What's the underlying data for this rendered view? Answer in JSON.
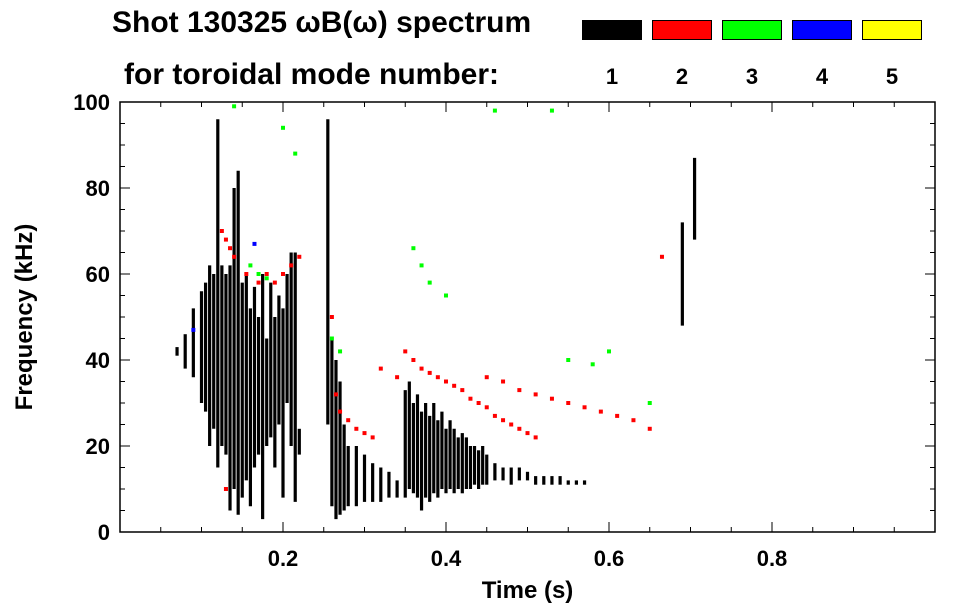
{
  "title_line1": "Shot 130325 ωB(ω) spectrum",
  "title_line2": "for toroidal mode number:",
  "legend": [
    {
      "label": "1",
      "color": "#000000"
    },
    {
      "label": "2",
      "color": "#ff0000"
    },
    {
      "label": "3",
      "color": "#00ff00"
    },
    {
      "label": "4",
      "color": "#0000ff"
    },
    {
      "label": "5",
      "color": "#ffff00"
    }
  ],
  "chart_data": {
    "type": "scatter",
    "title": "Shot 130325 ωB(ω) spectrum",
    "xlabel": "Time (s)",
    "ylabel": "Frequency (kHz)",
    "xlim": [
      0.0,
      1.0
    ],
    "ylim": [
      0,
      100
    ],
    "xticks": [
      0.2,
      0.4,
      0.6,
      0.8
    ],
    "xtick_labels": [
      "0.2",
      "0.4",
      "0.6",
      "0.8"
    ],
    "yticks": [
      0,
      20,
      40,
      60,
      80,
      100
    ],
    "ytick_labels": [
      "0",
      "20",
      "40",
      "60",
      "80",
      "100"
    ],
    "grid": false,
    "series": [
      {
        "name": "1",
        "color": "#000000",
        "segments": [
          {
            "x": 0.07,
            "y0": 41,
            "y1": 43
          },
          {
            "x": 0.08,
            "y0": 38,
            "y1": 46
          },
          {
            "x": 0.09,
            "y0": 36,
            "y1": 52
          },
          {
            "x": 0.1,
            "y0": 30,
            "y1": 56
          },
          {
            "x": 0.105,
            "y0": 28,
            "y1": 58
          },
          {
            "x": 0.11,
            "y0": 20,
            "y1": 62
          },
          {
            "x": 0.115,
            "y0": 24,
            "y1": 60
          },
          {
            "x": 0.12,
            "y0": 15,
            "y1": 96
          },
          {
            "x": 0.125,
            "y0": 20,
            "y1": 62
          },
          {
            "x": 0.13,
            "y0": 18,
            "y1": 60
          },
          {
            "x": 0.135,
            "y0": 5,
            "y1": 62
          },
          {
            "x": 0.14,
            "y0": 10,
            "y1": 80
          },
          {
            "x": 0.145,
            "y0": 4,
            "y1": 84
          },
          {
            "x": 0.15,
            "y0": 8,
            "y1": 58
          },
          {
            "x": 0.155,
            "y0": 12,
            "y1": 60
          },
          {
            "x": 0.16,
            "y0": 6,
            "y1": 52
          },
          {
            "x": 0.165,
            "y0": 15,
            "y1": 57
          },
          {
            "x": 0.17,
            "y0": 18,
            "y1": 50
          },
          {
            "x": 0.175,
            "y0": 3,
            "y1": 60
          },
          {
            "x": 0.18,
            "y0": 20,
            "y1": 45
          },
          {
            "x": 0.185,
            "y0": 22,
            "y1": 58
          },
          {
            "x": 0.19,
            "y0": 15,
            "y1": 50
          },
          {
            "x": 0.195,
            "y0": 25,
            "y1": 55
          },
          {
            "x": 0.2,
            "y0": 8,
            "y1": 52
          },
          {
            "x": 0.205,
            "y0": 30,
            "y1": 60
          },
          {
            "x": 0.21,
            "y0": 20,
            "y1": 65
          },
          {
            "x": 0.215,
            "y0": 7,
            "y1": 65
          },
          {
            "x": 0.22,
            "y0": 18,
            "y1": 24
          },
          {
            "x": 0.255,
            "y0": 25,
            "y1": 96
          },
          {
            "x": 0.26,
            "y0": 6,
            "y1": 45
          },
          {
            "x": 0.265,
            "y0": 3,
            "y1": 40
          },
          {
            "x": 0.27,
            "y0": 4,
            "y1": 35
          },
          {
            "x": 0.275,
            "y0": 5,
            "y1": 25
          },
          {
            "x": 0.28,
            "y0": 6,
            "y1": 20
          },
          {
            "x": 0.29,
            "y0": 6,
            "y1": 20
          },
          {
            "x": 0.3,
            "y0": 7,
            "y1": 18
          },
          {
            "x": 0.31,
            "y0": 7,
            "y1": 16
          },
          {
            "x": 0.32,
            "y0": 7,
            "y1": 15
          },
          {
            "x": 0.33,
            "y0": 8,
            "y1": 14
          },
          {
            "x": 0.34,
            "y0": 8,
            "y1": 12
          },
          {
            "x": 0.35,
            "y0": 8,
            "y1": 33
          },
          {
            "x": 0.355,
            "y0": 10,
            "y1": 35
          },
          {
            "x": 0.36,
            "y0": 9,
            "y1": 30
          },
          {
            "x": 0.365,
            "y0": 8,
            "y1": 32
          },
          {
            "x": 0.37,
            "y0": 5,
            "y1": 28
          },
          {
            "x": 0.375,
            "y0": 8,
            "y1": 30
          },
          {
            "x": 0.38,
            "y0": 7,
            "y1": 27
          },
          {
            "x": 0.385,
            "y0": 9,
            "y1": 30
          },
          {
            "x": 0.39,
            "y0": 8,
            "y1": 26
          },
          {
            "x": 0.395,
            "y0": 10,
            "y1": 28
          },
          {
            "x": 0.4,
            "y0": 9,
            "y1": 24
          },
          {
            "x": 0.405,
            "y0": 10,
            "y1": 26
          },
          {
            "x": 0.41,
            "y0": 9,
            "y1": 24
          },
          {
            "x": 0.415,
            "y0": 10,
            "y1": 22
          },
          {
            "x": 0.42,
            "y0": 9,
            "y1": 23
          },
          {
            "x": 0.425,
            "y0": 10,
            "y1": 22
          },
          {
            "x": 0.43,
            "y0": 10,
            "y1": 20
          },
          {
            "x": 0.435,
            "y0": 11,
            "y1": 20
          },
          {
            "x": 0.44,
            "y0": 10,
            "y1": 19
          },
          {
            "x": 0.445,
            "y0": 11,
            "y1": 20
          },
          {
            "x": 0.45,
            "y0": 11,
            "y1": 18
          },
          {
            "x": 0.46,
            "y0": 12,
            "y1": 16
          },
          {
            "x": 0.47,
            "y0": 12,
            "y1": 15
          },
          {
            "x": 0.48,
            "y0": 11,
            "y1": 15
          },
          {
            "x": 0.49,
            "y0": 12,
            "y1": 15
          },
          {
            "x": 0.5,
            "y0": 12,
            "y1": 14
          },
          {
            "x": 0.51,
            "y0": 11,
            "y1": 13
          },
          {
            "x": 0.52,
            "y0": 11,
            "y1": 13
          },
          {
            "x": 0.53,
            "y0": 11,
            "y1": 13
          },
          {
            "x": 0.54,
            "y0": 11,
            "y1": 13
          },
          {
            "x": 0.55,
            "y0": 11,
            "y1": 12
          },
          {
            "x": 0.56,
            "y0": 11,
            "y1": 12
          },
          {
            "x": 0.57,
            "y0": 11,
            "y1": 12
          },
          {
            "x": 0.69,
            "y0": 48,
            "y1": 72
          },
          {
            "x": 0.705,
            "y0": 68,
            "y1": 87
          }
        ]
      },
      {
        "name": "2",
        "color": "#ff0000",
        "points": [
          [
            0.125,
            70
          ],
          [
            0.13,
            68
          ],
          [
            0.135,
            66
          ],
          [
            0.14,
            64
          ],
          [
            0.155,
            60
          ],
          [
            0.17,
            58
          ],
          [
            0.18,
            60
          ],
          [
            0.19,
            58
          ],
          [
            0.2,
            60
          ],
          [
            0.21,
            62
          ],
          [
            0.22,
            64
          ],
          [
            0.13,
            10
          ],
          [
            0.26,
            50
          ],
          [
            0.265,
            32
          ],
          [
            0.27,
            28
          ],
          [
            0.28,
            26
          ],
          [
            0.29,
            24
          ],
          [
            0.3,
            23
          ],
          [
            0.31,
            22
          ],
          [
            0.32,
            38
          ],
          [
            0.34,
            36
          ],
          [
            0.35,
            42
          ],
          [
            0.36,
            40
          ],
          [
            0.37,
            38
          ],
          [
            0.38,
            37
          ],
          [
            0.39,
            36
          ],
          [
            0.4,
            35
          ],
          [
            0.41,
            34
          ],
          [
            0.42,
            33
          ],
          [
            0.43,
            31
          ],
          [
            0.44,
            30
          ],
          [
            0.45,
            29
          ],
          [
            0.46,
            27
          ],
          [
            0.47,
            26
          ],
          [
            0.48,
            25
          ],
          [
            0.49,
            24
          ],
          [
            0.5,
            23
          ],
          [
            0.51,
            22
          ],
          [
            0.45,
            36
          ],
          [
            0.47,
            35
          ],
          [
            0.49,
            33
          ],
          [
            0.51,
            32
          ],
          [
            0.53,
            31
          ],
          [
            0.55,
            30
          ],
          [
            0.57,
            29
          ],
          [
            0.59,
            28
          ],
          [
            0.61,
            27
          ],
          [
            0.63,
            26
          ],
          [
            0.65,
            24
          ],
          [
            0.665,
            64
          ]
        ]
      },
      {
        "name": "3",
        "color": "#00ff00",
        "points": [
          [
            0.14,
            99
          ],
          [
            0.16,
            62
          ],
          [
            0.17,
            60
          ],
          [
            0.18,
            59
          ],
          [
            0.2,
            94
          ],
          [
            0.215,
            88
          ],
          [
            0.26,
            45
          ],
          [
            0.27,
            42
          ],
          [
            0.36,
            66
          ],
          [
            0.37,
            62
          ],
          [
            0.38,
            58
          ],
          [
            0.4,
            55
          ],
          [
            0.46,
            98
          ],
          [
            0.53,
            98
          ],
          [
            0.55,
            40
          ],
          [
            0.58,
            39
          ],
          [
            0.6,
            42
          ],
          [
            0.65,
            30
          ]
        ]
      },
      {
        "name": "4",
        "color": "#0000ff",
        "points": [
          [
            0.165,
            67
          ],
          [
            0.09,
            47
          ]
        ]
      },
      {
        "name": "5",
        "color": "#ffff00",
        "points": []
      }
    ]
  }
}
